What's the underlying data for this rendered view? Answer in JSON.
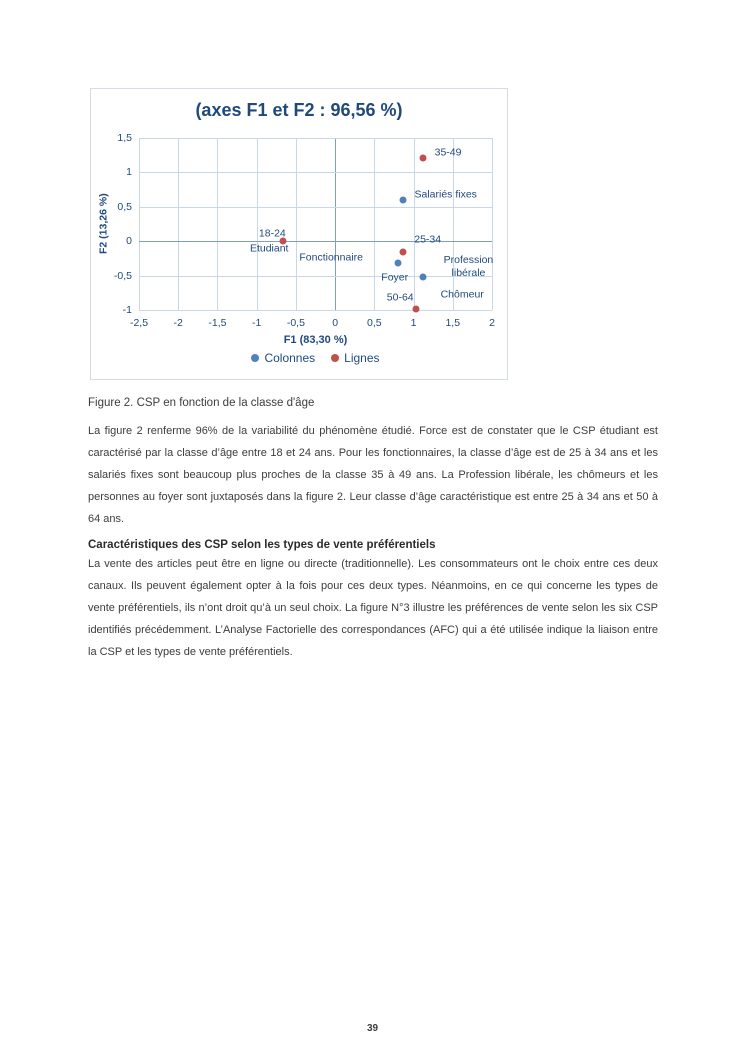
{
  "document": {
    "figure_caption": "Figure 2. CSP en fonction de la classe d'âge",
    "paragraph_1": "La figure 2 renferme 96% de la variabilité du phénomène étudié. Force est de constater que le CSP étudiant est caractérisé par la classe d’âge entre 18 et 24 ans. Pour les fonctionnaires, la classe d’âge est de 25 à 34 ans et les salariés fixes sont beaucoup plus proches de la classe 35 à 49 ans.  La Profession libérale, les chômeurs et les personnes au foyer sont juxtaposés dans la figure 2. Leur classe d’âge caractéristique est entre 25 à 34 ans et 50 à 64 ans.",
    "section_heading": "Caractéristiques des CSP selon les types de vente préférentiels",
    "paragraph_2": "La vente des articles peut être en ligne ou directe (traditionnelle). Les consommateurs ont le choix entre ces deux canaux. Ils peuvent également opter à la fois pour ces deux types. Néanmoins, en ce qui concerne les types de vente préférentiels, ils n’ont droit qu’à un seul choix. La figure N°3 illustre les préférences de vente selon les six CSP identifiés précédemment. L’Analyse Factorielle des correspondances (AFC) qui a été utilisée indique la liaison entre la CSP et les types de vente préférentiels.",
    "page_number": "39"
  },
  "chart_data": {
    "type": "scatter",
    "title": "(axes F1 et F2 : 96,56 %)",
    "xlabel": "F1 (83,30 %)",
    "ylabel": "F2 (13,26 %)",
    "xlim": [
      -2.5,
      2
    ],
    "ylim": [
      -1,
      1.5
    ],
    "grid": true,
    "legend_position": "bottom",
    "xticks": [
      {
        "v": -2.5,
        "label": "-2,5"
      },
      {
        "v": -2,
        "label": "-2"
      },
      {
        "v": -1.5,
        "label": "-1,5"
      },
      {
        "v": -1,
        "label": "-1"
      },
      {
        "v": -0.5,
        "label": "-0,5"
      },
      {
        "v": 0,
        "label": "0"
      },
      {
        "v": 0.5,
        "label": "0,5"
      },
      {
        "v": 1,
        "label": "1"
      },
      {
        "v": 1.5,
        "label": "1,5"
      },
      {
        "v": 2,
        "label": "2"
      }
    ],
    "yticks": [
      {
        "v": 1.5,
        "label": "1,5"
      },
      {
        "v": 1,
        "label": "1"
      },
      {
        "v": 0.5,
        "label": "0,5"
      },
      {
        "v": 0,
        "label": "0"
      },
      {
        "v": -0.5,
        "label": "-0,5"
      },
      {
        "v": -1,
        "label": "-1"
      }
    ],
    "legend": [
      {
        "label": "Colonnes",
        "color": "#4F81BD"
      },
      {
        "label": "Lignes",
        "color": "#C0504D"
      }
    ],
    "series": [
      {
        "name": "Colonnes",
        "color": "#4F81BD",
        "points": [
          {
            "name": "salaries-fixes",
            "x": 0.87,
            "y": 0.6
          },
          {
            "name": "foyer-fonctionnaire",
            "x": 0.8,
            "y": -0.31
          },
          {
            "name": "profession-liberale-chomeur",
            "x": 1.12,
            "y": -0.52
          }
        ]
      },
      {
        "name": "Lignes",
        "color": "#C0504D",
        "points": [
          {
            "name": "35-49",
            "x": 1.12,
            "y": 1.21
          },
          {
            "name": "18-24",
            "x": -0.67,
            "y": 0.01
          },
          {
            "name": "25-34",
            "x": 0.87,
            "y": -0.16
          },
          {
            "name": "50-64",
            "x": 1.03,
            "y": -0.99
          }
        ]
      }
    ],
    "point_labels": [
      {
        "text": "35-49",
        "x": 1.44,
        "y": 1.28
      },
      {
        "text": "Salariés fixes",
        "x": 1.41,
        "y": 0.67
      },
      {
        "text": "18-24",
        "x": -0.8,
        "y": 0.11
      },
      {
        "text": "Etudiant",
        "x": -0.84,
        "y": -0.12
      },
      {
        "text": "Fonctionnaire",
        "x": -0.05,
        "y": -0.24
      },
      {
        "text": "25-34",
        "x": 1.18,
        "y": 0.02
      },
      {
        "text": "Foyer",
        "x": 0.76,
        "y": -0.54
      },
      {
        "text": "Profession\nlibérale",
        "x": 1.7,
        "y": -0.38
      },
      {
        "text": "Chômeur",
        "x": 1.62,
        "y": -0.78
      },
      {
        "text": "50-64",
        "x": 0.83,
        "y": -0.83
      }
    ]
  }
}
